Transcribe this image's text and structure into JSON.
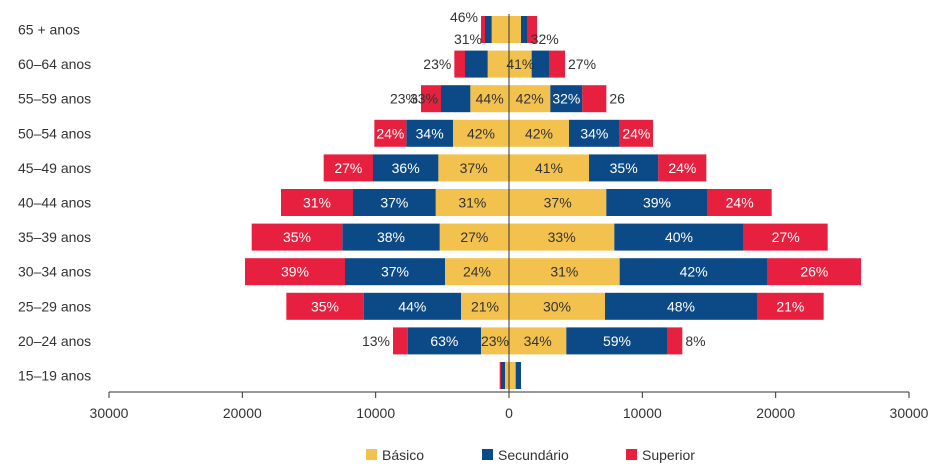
{
  "chart_data": {
    "type": "bar",
    "orientation": "horizontal-diverging",
    "title": "",
    "xlabel": "",
    "ylabel": "",
    "categories": [
      "65 + anos",
      "60–64 anos",
      "55–59 anos",
      "50–54 anos",
      "45–49 anos",
      "40–44 anos",
      "35–39 anos",
      "30–34 anos",
      "25–29 anos",
      "20–24 anos",
      "15–19 anos"
    ],
    "xlim": [
      -30000,
      30000
    ],
    "x_ticks": [
      -30000,
      -20000,
      -10000,
      0,
      10000,
      20000,
      30000
    ],
    "x_tick_labels": [
      "30000",
      "20000",
      "10000",
      "0",
      "10000",
      "20000",
      "30000"
    ],
    "grid": false,
    "legend_position": "bottom",
    "series_order": [
      "Básico",
      "Secundário",
      "Superior"
    ],
    "colors": {
      "Básico": "#f2c14e",
      "Secundário": "#0b4a86",
      "Superior": "#e8203f"
    },
    "left": {
      "Básico": [
        -1300,
        -1600,
        -2900,
        -4200,
        -5300,
        -5500,
        -5200,
        -4800,
        -3600,
        -2100,
        -300
      ],
      "Secundário": [
        -500,
        -1700,
        -2200,
        -3500,
        -4900,
        -6200,
        -7300,
        -7500,
        -7300,
        -5500,
        -300
      ],
      "Superior": [
        -300,
        -800,
        -1500,
        -2400,
        -3700,
        -5400,
        -6800,
        -7500,
        -5800,
        -1100,
        -100
      ],
      "labels": {
        "Básico": [
          "",
          "",
          "44%",
          "42%",
          "37%",
          "31%",
          "27%",
          "24%",
          "21%",
          "23%",
          ""
        ],
        "Secundário": [
          "31%",
          "",
          "33%",
          "34%",
          "36%",
          "37%",
          "38%",
          "37%",
          "44%",
          "63%",
          ""
        ],
        "Superior": [
          "46%",
          "23%",
          "23%",
          "24%",
          "27%",
          "31%",
          "35%",
          "39%",
          "35%",
          "13%",
          ""
        ]
      }
    },
    "right": {
      "Básico": [
        900,
        1700,
        3100,
        4500,
        6000,
        7300,
        7900,
        8300,
        7200,
        4300,
        500
      ],
      "Secundário": [
        500,
        1300,
        2400,
        3800,
        5200,
        7600,
        9700,
        11100,
        11400,
        7600,
        400
      ],
      "Superior": [
        700,
        1200,
        1800,
        2500,
        3600,
        4800,
        6300,
        7000,
        5000,
        1100,
        0
      ],
      "labels": {
        "Básico": [
          "",
          "41%",
          "42%",
          "42%",
          "41%",
          "37%",
          "33%",
          "31%",
          "30%",
          "34%",
          ""
        ],
        "Secundário": [
          "32%",
          "",
          "32%",
          "34%",
          "35%",
          "39%",
          "40%",
          "42%",
          "48%",
          "59%",
          ""
        ],
        "Superior": [
          "",
          "27%",
          "26",
          "24%",
          "24%",
          "24%",
          "27%",
          "26%",
          "21%",
          "8%",
          ""
        ]
      }
    }
  }
}
